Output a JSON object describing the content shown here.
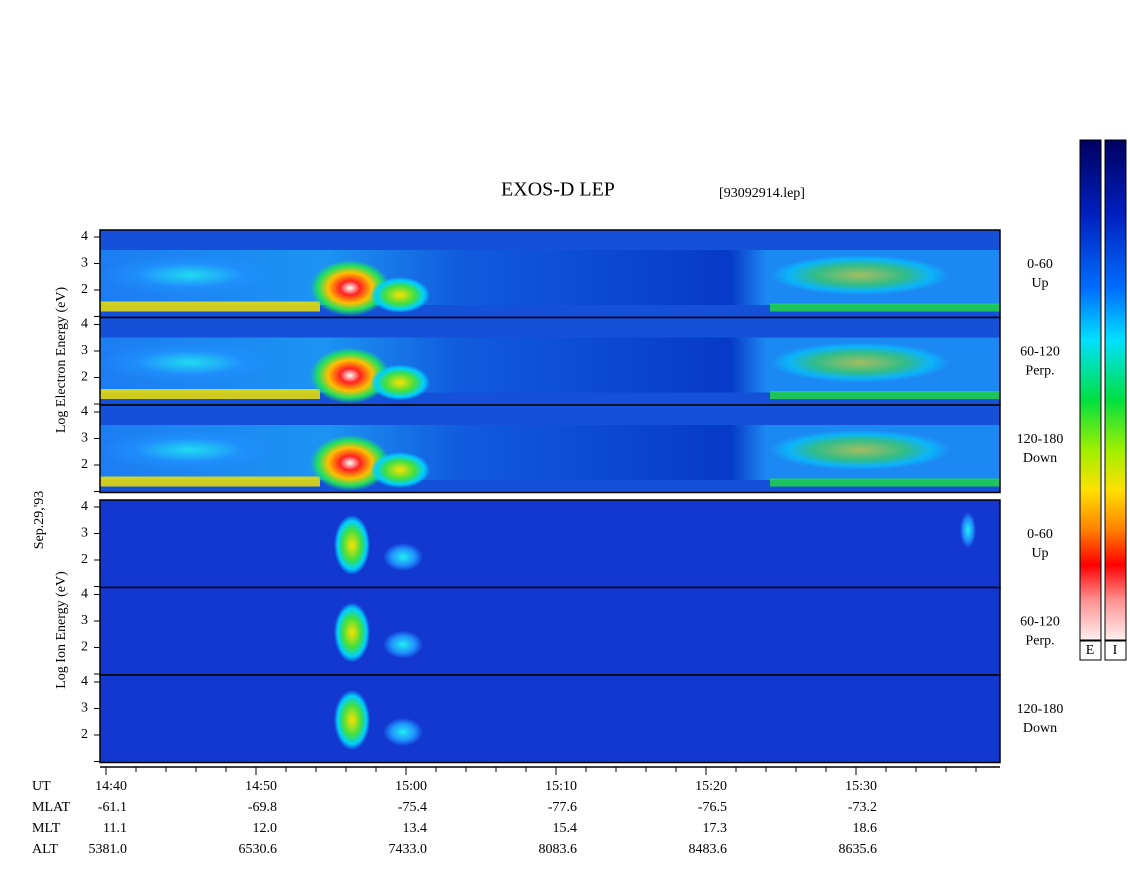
{
  "header": {
    "title": "EXOS-D LEP",
    "file": "[93092914.lep]"
  },
  "date": "Sep.29,'93",
  "electron": {
    "ylabel": "Log Electron Energy (eV)",
    "panels": [
      {
        "angle": "0-60",
        "direction": "Up",
        "yticks": [
          "2",
          "3",
          "4"
        ]
      },
      {
        "angle": "60-120",
        "direction": "Perp.",
        "yticks": [
          "2",
          "3",
          "4"
        ]
      },
      {
        "angle": "120-180",
        "direction": "Down",
        "yticks": [
          "2",
          "3",
          "4"
        ]
      }
    ]
  },
  "ion": {
    "ylabel": "Log Ion Energy (eV)",
    "panels": [
      {
        "angle": "0-60",
        "direction": "Up",
        "yticks": [
          "2",
          "3",
          "4"
        ]
      },
      {
        "angle": "60-120",
        "direction": "Perp.",
        "yticks": [
          "2",
          "3",
          "4"
        ]
      },
      {
        "angle": "120-180",
        "direction": "Down",
        "yticks": [
          "2",
          "3",
          "4"
        ]
      }
    ]
  },
  "time_axis": {
    "rows": [
      {
        "name": "UT",
        "values": [
          "14:40",
          "14:50",
          "15:00",
          "15:10",
          "15:20",
          "15:30"
        ]
      },
      {
        "name": "MLAT",
        "values": [
          "-61.1",
          "-69.8",
          "-75.4",
          "-77.6",
          "-76.5",
          "-73.2"
        ]
      },
      {
        "name": "MLT",
        "values": [
          "11.1",
          "12.0",
          "13.4",
          "15.4",
          "17.3",
          "18.6"
        ]
      },
      {
        "name": "ALT",
        "values": [
          "5381.0",
          "6530.6",
          "7433.0",
          "8083.6",
          "8483.6",
          "8635.6"
        ]
      }
    ]
  },
  "colorbar": {
    "labels": [
      "E",
      "I"
    ]
  }
}
